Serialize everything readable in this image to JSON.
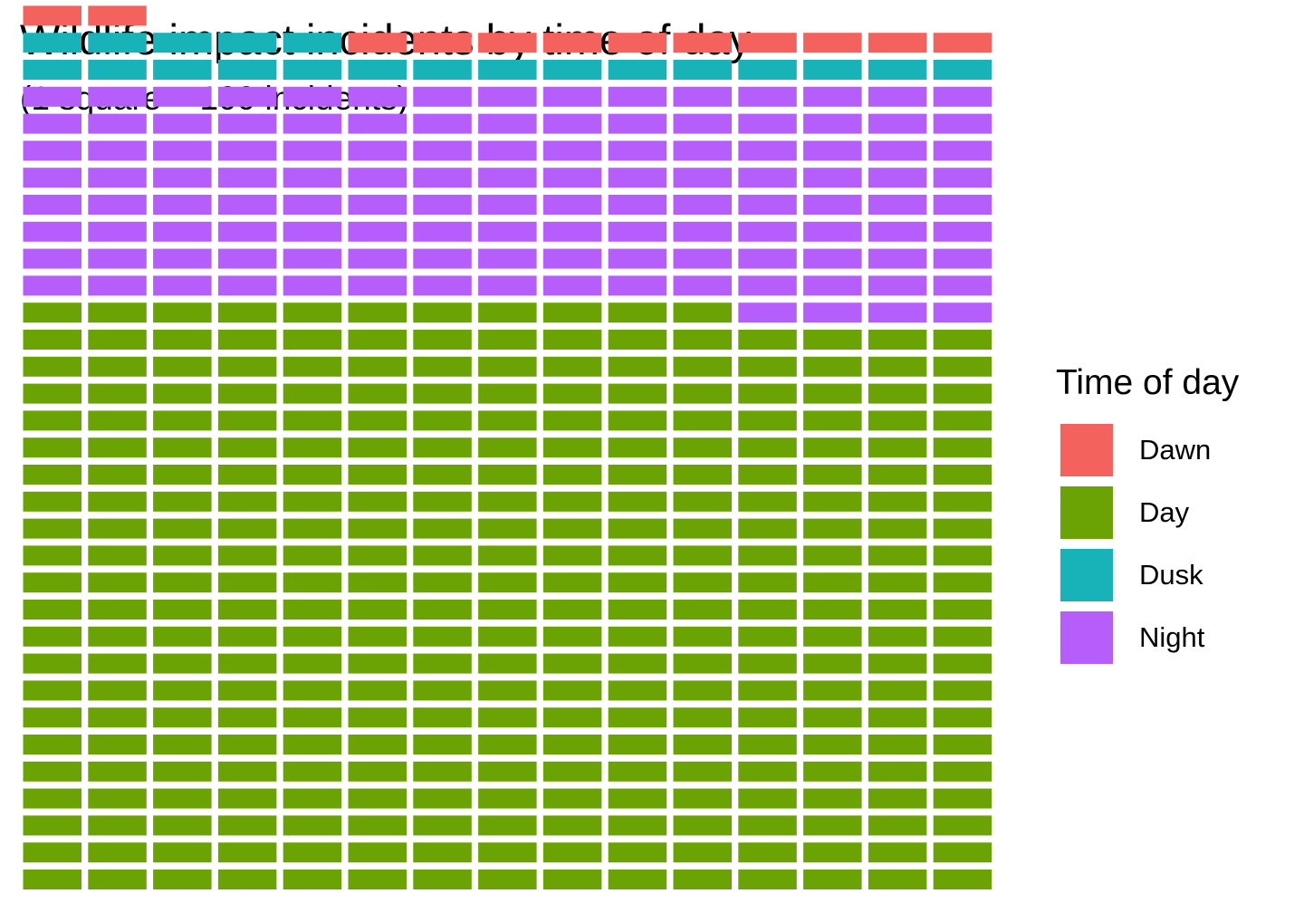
{
  "chart_data": {
    "type": "waffle",
    "title": "Wildlife impact incidents by time of day",
    "subtitle": "(1 square = 100 incidents)",
    "units_per_square": 100,
    "columns": 15,
    "fill_order": "bottom-to-top, left-to-right",
    "legend": {
      "title": "Time of day",
      "placement": "right"
    },
    "categories": [
      {
        "name": "Day",
        "squares": 326,
        "color": "#6BA304"
      },
      {
        "name": "Night",
        "squares": 124,
        "color": "#B55EFB"
      },
      {
        "name": "Dusk",
        "squares": 20,
        "color": "#18B3B9"
      },
      {
        "name": "Dawn",
        "squares": 12,
        "color": "#F4625D"
      }
    ],
    "legend_order": [
      "Dawn",
      "Day",
      "Dusk",
      "Night"
    ]
  }
}
